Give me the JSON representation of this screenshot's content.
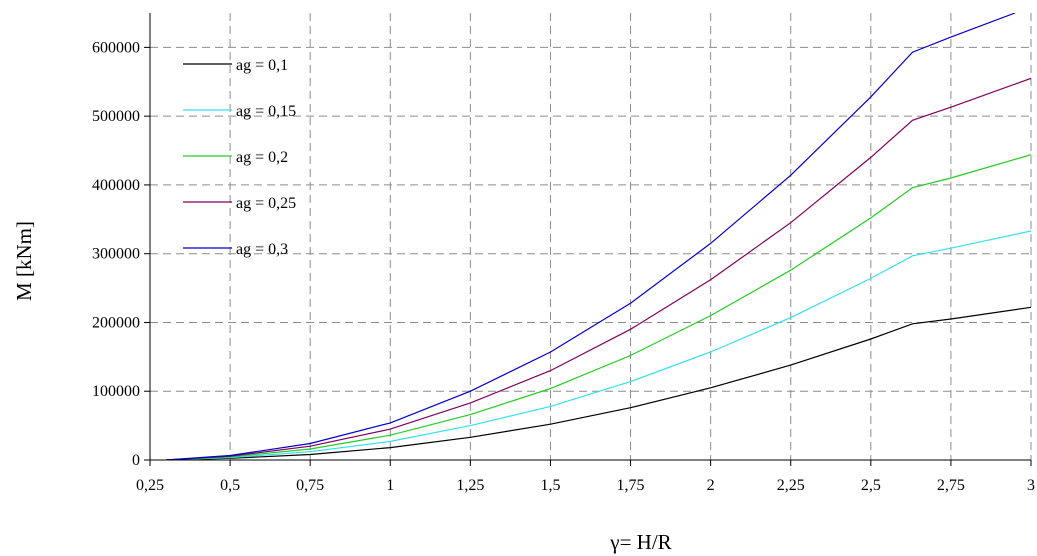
{
  "chart_data": {
    "type": "line",
    "title": "",
    "xlabel": "γ= H/R",
    "ylabel": "M [kNm]",
    "xlim": [
      0.25,
      3
    ],
    "ylim": [
      0,
      650000
    ],
    "x_ticks": [
      "0,25",
      "0,5",
      "0,75",
      "1",
      "1,25",
      "1,5",
      "1,75",
      "2",
      "2,25",
      "2,5",
      "2,75",
      "3"
    ],
    "x_tick_values": [
      0.25,
      0.5,
      0.75,
      1,
      1.25,
      1.5,
      1.75,
      2,
      2.25,
      2.5,
      2.75,
      3
    ],
    "y_ticks": [
      "0",
      "100000",
      "200000",
      "300000",
      "400000",
      "500000",
      "600000"
    ],
    "y_tick_values": [
      0,
      100000,
      200000,
      300000,
      400000,
      500000,
      600000
    ],
    "grid": true,
    "legend_position": "top-left",
    "series": [
      {
        "name": "ag = 0,1",
        "color": "#000000",
        "x": [
          0.3,
          0.5,
          0.75,
          1,
          1.25,
          1.5,
          1.75,
          2,
          2.25,
          2.5,
          2.63,
          2.75,
          3
        ],
        "values": [
          0,
          2500,
          8000,
          18000,
          33000,
          52000,
          76000,
          105000,
          138000,
          176000,
          198000,
          205000,
          222000
        ]
      },
      {
        "name": "ag = 0,15",
        "color": "#33e0f0",
        "x": [
          0.3,
          0.5,
          0.75,
          1,
          1.25,
          1.5,
          1.75,
          2,
          2.25,
          2.5,
          2.63,
          2.75,
          3
        ],
        "values": [
          0,
          3500,
          12000,
          27000,
          50000,
          78000,
          114000,
          157000,
          207000,
          264000,
          297000,
          308000,
          333000
        ]
      },
      {
        "name": "ag = 0,2",
        "color": "#22cc22",
        "x": [
          0.3,
          0.5,
          0.75,
          1,
          1.25,
          1.5,
          1.75,
          2,
          2.25,
          2.5,
          2.63,
          2.75,
          3
        ],
        "values": [
          0,
          4500,
          16000,
          36000,
          66000,
          104000,
          152000,
          210000,
          276000,
          352000,
          396000,
          410000,
          444000
        ]
      },
      {
        "name": "ag = 0,25",
        "color": "#800060",
        "x": [
          0.3,
          0.5,
          0.75,
          1,
          1.25,
          1.5,
          1.75,
          2,
          2.25,
          2.5,
          2.63,
          2.75,
          3
        ],
        "values": [
          0,
          5500,
          20000,
          45000,
          83000,
          130000,
          190000,
          262000,
          345000,
          440000,
          494000,
          513000,
          555000
        ]
      },
      {
        "name": "ag = 0,3",
        "color": "#0000cc",
        "x": [
          0.3,
          0.5,
          0.75,
          1,
          1.25,
          1.5,
          1.75,
          2,
          2.25,
          2.5,
          2.63,
          2.75,
          2.95
        ],
        "values": [
          0,
          6500,
          24000,
          54000,
          100000,
          157000,
          228000,
          315000,
          414000,
          528000,
          593000,
          615000,
          650000
        ]
      }
    ]
  }
}
